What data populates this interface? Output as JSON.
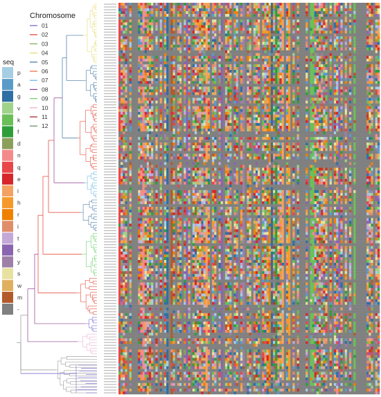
{
  "chromosome_legend": {
    "title": "Chromosome",
    "items": [
      {
        "label": "01",
        "color": "#6a5acd"
      },
      {
        "label": "02",
        "color": "#e03c2c"
      },
      {
        "label": "03",
        "color": "#7aa84a"
      },
      {
        "label": "04",
        "color": "#e6d96a"
      },
      {
        "label": "05",
        "color": "#3a6fa0"
      },
      {
        "label": "06",
        "color": "#e8683a"
      },
      {
        "label": "07",
        "color": "#5fb3e0"
      },
      {
        "label": "08",
        "color": "#8e3a8e"
      },
      {
        "label": "09",
        "color": "#66cc66"
      },
      {
        "label": "10",
        "color": "#e9a7c9"
      },
      {
        "label": "11",
        "color": "#a01c1c"
      },
      {
        "label": "12",
        "color": "#5a8a5a"
      }
    ]
  },
  "seq_legend": {
    "title": "seq",
    "items": [
      {
        "label": "p",
        "color": "#a6cee3"
      },
      {
        "label": "a",
        "color": "#5b9bc8"
      },
      {
        "label": "g",
        "color": "#2f6fa3"
      },
      {
        "label": "v",
        "color": "#9fd38a"
      },
      {
        "label": "k",
        "color": "#6bbf59"
      },
      {
        "label": "f",
        "color": "#2e9e3a"
      },
      {
        "label": "d",
        "color": "#8c9f5a"
      },
      {
        "label": "n",
        "color": "#f48b8b"
      },
      {
        "label": "q",
        "color": "#e8474a"
      },
      {
        "label": "e",
        "color": "#d7262b"
      },
      {
        "label": "i",
        "color": "#f4a261"
      },
      {
        "label": "h",
        "color": "#f59a2a"
      },
      {
        "label": "r",
        "color": "#f08000"
      },
      {
        "label": "i",
        "color": "#e08e6a"
      },
      {
        "label": "t",
        "color": "#c4a8d8"
      },
      {
        "label": "c",
        "color": "#8a64b0"
      },
      {
        "label": "y",
        "color": "#9d7fa8"
      },
      {
        "label": "s",
        "color": "#e8e2a0"
      },
      {
        "label": "w",
        "color": "#e0b060"
      },
      {
        "label": "m",
        "color": "#b25a2a"
      },
      {
        "label": "-",
        "color": "#808080"
      }
    ]
  }
}
